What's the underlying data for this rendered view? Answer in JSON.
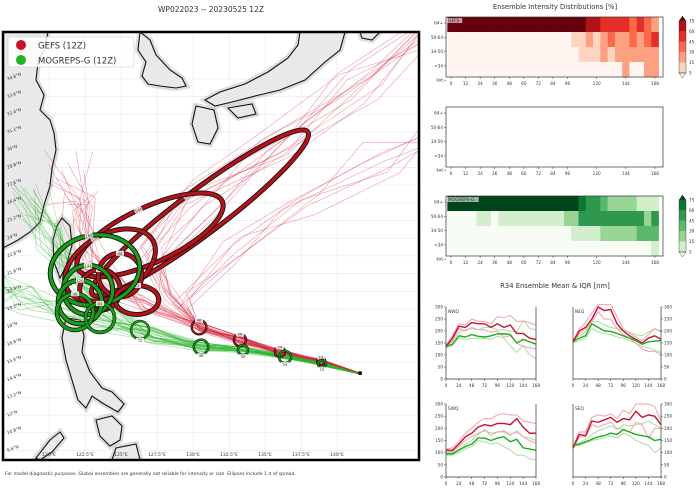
{
  "title": "WP022023 -- 20230525 12Z",
  "footer": "For model diagnostic purposes. Global ensembles are generally not reliable for intensity or size. Ellipses include 1 σ of spread.",
  "legend": {
    "items": [
      {
        "label": "GEFS (12Z)",
        "color": "#c8102e"
      },
      {
        "label": "MOGREPS-G (12Z)",
        "color": "#22b422"
      }
    ]
  },
  "chart_data": [
    {
      "type": "map-track",
      "lon_ticks": [
        "120°E",
        "122.5°E",
        "125°E",
        "127.5°E",
        "130°E",
        "132.5°E",
        "135°E",
        "137.5°E",
        "140°E"
      ],
      "lon_values": [
        120,
        122.5,
        125,
        127.5,
        130,
        132.5,
        135,
        137.5,
        140
      ],
      "lat_ticks": [
        "34.8°N",
        "33.6°N",
        "32.4°N",
        "31.2°N",
        "30°N",
        "28.8°N",
        "27.6°N",
        "26.4°N",
        "25.2°N",
        "24°N",
        "22.8°N",
        "21.6°N",
        "20.4°N",
        "19.2°N",
        "18°N",
        "16.8°N",
        "15.6°N",
        "14.4°N",
        "13.2°N",
        "12°N",
        "10.8°N",
        "9.6°N"
      ],
      "lat_values": [
        34.8,
        33.6,
        32.4,
        31.2,
        30,
        28.8,
        27.6,
        26.4,
        25.2,
        24,
        22.8,
        21.6,
        20.4,
        19.2,
        18,
        16.8,
        15.6,
        14.4,
        13.2,
        12,
        10.8,
        9.6
      ],
      "initial_position": {
        "lon": 141.6,
        "lat": 14.85
      },
      "ellipses": {
        "GEFS": [
          {
            "tau": "168",
            "lon": 130.49,
            "lat": 25.71,
            "a": 9.3,
            "b": 1.5,
            "angle": -37
          },
          {
            "tau": "144",
            "lon": 127.01,
            "lat": 24.22,
            "a": 5.5,
            "b": 1.9,
            "angle": -25
          },
          {
            "tau": "120",
            "lon": 124.24,
            "lat": 22.18,
            "a": 3.4,
            "b": 2.1,
            "angle": -30
          },
          {
            "tau": "96",
            "lon": 124.93,
            "lat": 21.5,
            "a": 1.5,
            "b": 1.5,
            "angle": 0
          },
          {
            "tau": "84",
            "lon": 123.54,
            "lat": 20.49,
            "a": 1.4,
            "b": 1.4,
            "angle": 0
          },
          {
            "tau": "72",
            "lon": 126.11,
            "lat": 19.81,
            "a": 1.5,
            "b": 1.0,
            "angle": 0
          },
          {
            "tau": "48",
            "lon": 130.42,
            "lat": 17.97,
            "a": 0.5,
            "b": 0.5,
            "angle": 0
          },
          {
            "tau": "36",
            "lon": 133.26,
            "lat": 17.09,
            "a": 0.42,
            "b": 0.42,
            "angle": 0
          },
          {
            "tau": "24",
            "lon": 136.04,
            "lat": 16.28,
            "a": 0.35,
            "b": 0.35,
            "angle": 0
          },
          {
            "tau": "12",
            "lon": 138.89,
            "lat": 15.67,
            "a": 0.28,
            "b": 0.28,
            "angle": 0
          }
        ],
        "MOGREPS-G": [
          {
            "tau": "168",
            "lon": 123.19,
            "lat": 21.84,
            "a": 3.1,
            "b": 2.4,
            "angle": -10
          },
          {
            "tau": "144",
            "lon": 122.71,
            "lat": 20.49,
            "a": 1.7,
            "b": 1.7,
            "angle": 0
          },
          {
            "tau": "120",
            "lon": 122.15,
            "lat": 19.67,
            "a": 1.5,
            "b": 1.5,
            "angle": 0
          },
          {
            "tau": "96",
            "lon": 121.81,
            "lat": 19.0,
            "a": 1.25,
            "b": 1.25,
            "angle": 0
          },
          {
            "tau": "84",
            "lon": 123.54,
            "lat": 18.59,
            "a": 1.0,
            "b": 1.0,
            "angle": 0
          },
          {
            "tau": "72",
            "lon": 126.32,
            "lat": 17.77,
            "a": 0.62,
            "b": 0.62,
            "angle": 0
          },
          {
            "tau": "48",
            "lon": 130.56,
            "lat": 16.62,
            "a": 0.5,
            "b": 0.5,
            "angle": 0
          },
          {
            "tau": "36",
            "lon": 133.47,
            "lat": 16.41,
            "a": 0.35,
            "b": 0.35,
            "angle": 0
          },
          {
            "tau": "24",
            "lon": 136.39,
            "lat": 15.94,
            "a": 0.42,
            "b": 0.42,
            "angle": 0
          },
          {
            "tau": "12",
            "lon": 138.96,
            "lat": 15.46,
            "a": 0.28,
            "b": 0.28,
            "angle": 0
          }
        ]
      }
    },
    {
      "type": "heatmap",
      "title": "Ensemble Intensity Distributions [%]",
      "hours": [
        0,
        6,
        12,
        18,
        24,
        30,
        36,
        42,
        48,
        54,
        60,
        66,
        72,
        78,
        84,
        90,
        96,
        102,
        108,
        114,
        120,
        126,
        132,
        138,
        144,
        150,
        156,
        162,
        168
      ],
      "x_ticks": [
        "0",
        "12",
        "24",
        "36",
        "48",
        "60",
        "72",
        "84",
        "96",
        "120",
        "144",
        "168"
      ],
      "x_tick_values": [
        0,
        12,
        24,
        36,
        48,
        60,
        72,
        84,
        96,
        120,
        144,
        168
      ],
      "rows": [
        "64+",
        "50-64",
        "34-50",
        "<34"
      ],
      "y_unit_label": "kot",
      "colorbar_levels": [
        "75",
        "60",
        "45",
        "30",
        "15",
        "5"
      ],
      "colorbar_values": [
        5,
        15,
        30,
        45,
        60,
        75
      ],
      "panels": [
        {
          "name": "GEFS",
          "colors": [
            "#fff5f0",
            "#fdd4c2",
            "#fca082",
            "#fb694a",
            "#e32f27",
            "#b11218",
            "#67000d"
          ],
          "values": [
            [
              90,
              90,
              90,
              90,
              90,
              90,
              90,
              90,
              90,
              90,
              90,
              90,
              90,
              90,
              90,
              90,
              90,
              90,
              90,
              62,
              62,
              50,
              50,
              50,
              50,
              30,
              50,
              30,
              20
            ],
            [
              2,
              2,
              2,
              2,
              2,
              2,
              2,
              2,
              2,
              2,
              2,
              2,
              2,
              2,
              2,
              2,
              2,
              12,
              12,
              25,
              12,
              25,
              40,
              25,
              25,
              40,
              25,
              40,
              55
            ],
            [
              2,
              2,
              2,
              2,
              2,
              2,
              2,
              2,
              2,
              2,
              2,
              2,
              2,
              2,
              2,
              2,
              2,
              2,
              12,
              12,
              12,
              25,
              12,
              25,
              25,
              25,
              25,
              25,
              25
            ],
            [
              2,
              2,
              2,
              2,
              2,
              2,
              2,
              2,
              2,
              2,
              2,
              2,
              2,
              2,
              2,
              2,
              2,
              2,
              2,
              2,
              2,
              2,
              2,
              2,
              15,
              2,
              2,
              15,
              15
            ]
          ]
        },
        {
          "name": "",
          "colors": [],
          "values": []
        },
        {
          "name": "MOGREPS-G",
          "colors": [
            "#f7fcf5",
            "#d3eecd",
            "#98d594",
            "#5bb86a",
            "#2f984f",
            "#0b7734",
            "#00441b"
          ],
          "values": [
            [
              90,
              90,
              90,
              90,
              90,
              90,
              90,
              90,
              90,
              90,
              90,
              90,
              90,
              90,
              90,
              90,
              90,
              90,
              65,
              50,
              50,
              30,
              20,
              20,
              20,
              20,
              10,
              10,
              10
            ],
            [
              1,
              1,
              1,
              1,
              12,
              12,
              1,
              12,
              12,
              12,
              12,
              12,
              12,
              12,
              12,
              12,
              25,
              25,
              45,
              45,
              45,
              45,
              55,
              55,
              55,
              55,
              55,
              25,
              55
            ],
            [
              1,
              1,
              1,
              1,
              1,
              1,
              1,
              1,
              1,
              1,
              1,
              1,
              1,
              1,
              1,
              1,
              1,
              12,
              12,
              12,
              12,
              25,
              25,
              25,
              25,
              25,
              40,
              40,
              40
            ],
            [
              1,
              1,
              1,
              1,
              1,
              1,
              1,
              1,
              1,
              1,
              1,
              1,
              1,
              1,
              1,
              1,
              1,
              1,
              1,
              1,
              1,
              1,
              1,
              1,
              1,
              1,
              1,
              1,
              12
            ]
          ]
        }
      ]
    },
    {
      "type": "line",
      "title": "R34 Ensemble Mean & IQR [nm]",
      "x": [
        0,
        12,
        24,
        36,
        48,
        60,
        72,
        84,
        96,
        108,
        120,
        132,
        144,
        156,
        168
      ],
      "x_ticks": [
        "0",
        "24",
        "48",
        "72",
        "96",
        "120",
        "144",
        "168"
      ],
      "x_tick_values": [
        0,
        24,
        48,
        72,
        96,
        120,
        144,
        168
      ],
      "y_ticks": [
        "0",
        "50",
        "100",
        "150",
        "200",
        "250",
        "300"
      ],
      "y_tick_values": [
        0,
        50,
        100,
        150,
        200,
        250,
        300
      ],
      "ylim": [
        0,
        300
      ],
      "colors": {
        "gefs_mean": "#c8102e",
        "gefs_iqr": "#f2a0ab",
        "mog_mean": "#1fae1f",
        "mog_iqr": "#a6dea0"
      },
      "panels": [
        {
          "name": "NWQ",
          "gefs_mean": [
            135,
            170,
            220,
            215,
            235,
            230,
            230,
            215,
            230,
            215,
            225,
            190,
            190,
            170,
            165
          ],
          "gefs_upper": [
            140,
            180,
            230,
            225,
            250,
            240,
            240,
            230,
            260,
            255,
            265,
            240,
            240,
            235,
            225
          ],
          "gefs_lower": [
            130,
            160,
            210,
            200,
            215,
            205,
            205,
            195,
            200,
            175,
            180,
            150,
            135,
            130,
            125
          ],
          "mog_mean": [
            135,
            145,
            180,
            175,
            185,
            178,
            175,
            180,
            188,
            188,
            185,
            150,
            165,
            155,
            145
          ],
          "mog_upper": [
            140,
            155,
            195,
            205,
            210,
            205,
            215,
            215,
            205,
            205,
            200,
            195,
            245,
            210,
            205
          ],
          "mog_lower": [
            130,
            140,
            170,
            165,
            170,
            170,
            170,
            165,
            178,
            170,
            140,
            110,
            140,
            100,
            85
          ]
        },
        {
          "name": "NEQ",
          "gefs_mean": [
            155,
            200,
            215,
            250,
            300,
            285,
            290,
            230,
            200,
            180,
            165,
            150,
            170,
            180,
            165
          ],
          "gefs_upper": [
            160,
            210,
            235,
            275,
            320,
            320,
            310,
            260,
            210,
            190,
            175,
            160,
            185,
            210,
            195
          ],
          "gefs_lower": [
            150,
            190,
            205,
            240,
            280,
            250,
            250,
            210,
            185,
            170,
            150,
            125,
            115,
            115,
            100
          ],
          "mog_mean": [
            155,
            170,
            180,
            230,
            215,
            200,
            198,
            190,
            180,
            170,
            160,
            145,
            155,
            158,
            160
          ],
          "mog_upper": [
            160,
            180,
            195,
            240,
            240,
            225,
            215,
            210,
            200,
            195,
            185,
            180,
            195,
            210,
            200
          ],
          "mog_lower": [
            150,
            160,
            170,
            210,
            195,
            190,
            185,
            175,
            170,
            160,
            150,
            135,
            130,
            120,
            110
          ]
        },
        {
          "name": "SWQ",
          "gefs_mean": [
            110,
            110,
            135,
            165,
            180,
            205,
            215,
            210,
            220,
            220,
            215,
            240,
            205,
            180,
            180
          ],
          "gefs_upper": [
            115,
            120,
            145,
            180,
            200,
            225,
            240,
            240,
            255,
            260,
            255,
            255,
            230,
            225,
            220
          ],
          "gefs_lower": [
            105,
            105,
            125,
            150,
            165,
            180,
            190,
            180,
            185,
            190,
            175,
            185,
            165,
            150,
            140
          ],
          "mog_mean": [
            95,
            95,
            110,
            125,
            135,
            160,
            160,
            150,
            160,
            165,
            145,
            155,
            120,
            115,
            110
          ],
          "mog_upper": [
            100,
            100,
            115,
            135,
            150,
            175,
            195,
            170,
            185,
            185,
            170,
            190,
            165,
            160,
            150
          ],
          "mog_lower": [
            90,
            90,
            100,
            115,
            125,
            150,
            145,
            135,
            140,
            125,
            110,
            90,
            90,
            75,
            70
          ]
        },
        {
          "name": "SEQ",
          "gefs_mean": [
            120,
            175,
            170,
            230,
            225,
            235,
            245,
            225,
            240,
            235,
            270,
            245,
            255,
            250,
            215
          ],
          "gefs_upper": [
            125,
            185,
            185,
            245,
            255,
            250,
            260,
            240,
            275,
            260,
            300,
            300,
            300,
            290,
            230
          ],
          "gefs_lower": [
            115,
            165,
            165,
            215,
            205,
            215,
            225,
            200,
            195,
            185,
            225,
            215,
            160,
            200,
            200
          ],
          "mog_mean": [
            130,
            135,
            145,
            155,
            165,
            170,
            180,
            175,
            195,
            185,
            175,
            170,
            165,
            150,
            155
          ],
          "mog_upper": [
            135,
            140,
            155,
            175,
            190,
            200,
            210,
            195,
            215,
            210,
            215,
            220,
            230,
            215,
            200
          ],
          "mog_lower": [
            125,
            130,
            140,
            150,
            155,
            160,
            170,
            160,
            180,
            170,
            150,
            140,
            130,
            100,
            120
          ]
        }
      ]
    }
  ]
}
